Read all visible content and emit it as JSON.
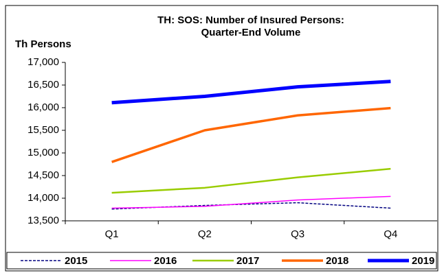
{
  "chart_data": {
    "type": "line",
    "title": [
      "TH: SOS: Number of Insured Persons:",
      "Quarter-End Volume"
    ],
    "y_label": "Th Persons",
    "categories": [
      "Q1",
      "Q2",
      "Q3",
      "Q4"
    ],
    "series": [
      {
        "name": "2015",
        "color": "#000080",
        "values": [
          13760,
          13840,
          13900,
          13780
        ]
      },
      {
        "name": "2016",
        "color": "#ff00ff",
        "values": [
          13780,
          13820,
          13960,
          14040
        ]
      },
      {
        "name": "2017",
        "color": "#99cc00",
        "values": [
          14120,
          14230,
          14460,
          14650
        ]
      },
      {
        "name": "2018",
        "color": "#ff6600",
        "values": [
          14800,
          15500,
          15830,
          15990
        ]
      },
      {
        "name": "2019",
        "color": "#0000ff",
        "values": [
          16110,
          16250,
          16460,
          16580
        ]
      }
    ],
    "ylim": [
      13500,
      17000
    ],
    "yticks": [
      {
        "value": 13500,
        "label": "13,500"
      },
      {
        "value": 14000,
        "label": "14,000"
      },
      {
        "value": 14500,
        "label": "14,500"
      },
      {
        "value": 15000,
        "label": "15,000"
      },
      {
        "value": 15500,
        "label": "15,500"
      },
      {
        "value": 16000,
        "label": "16,000"
      },
      {
        "value": 16500,
        "label": "16,500"
      },
      {
        "value": 17000,
        "label": "17,000"
      }
    ],
    "grid": false,
    "legend": "bottom"
  }
}
